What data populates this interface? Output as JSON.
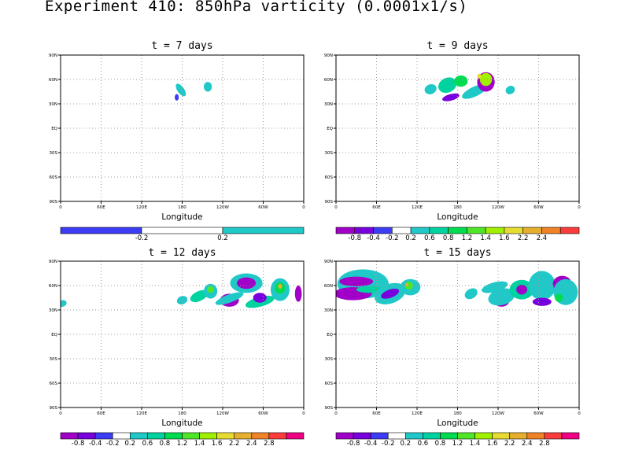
{
  "figure": {
    "title": "Experiment 410: 850hPa varticity (0.0001x1/s)"
  },
  "chart_data": [
    {
      "type": "contour-map",
      "title": "t = 7 days",
      "xlabel": "Longitude",
      "x_ticks": [
        "0",
        "60E",
        "120E",
        "180",
        "120W",
        "60W",
        "0"
      ],
      "y_ticks": [
        "90S",
        "60S",
        "30S",
        "EQ",
        "30N",
        "60N",
        "90N"
      ],
      "grid": true,
      "colorbar": {
        "colors": [
          "#3c3cf5",
          "#ffffff",
          "#20c8c8"
        ],
        "labels": [
          "-0.2",
          "0.2"
        ]
      },
      "features": [
        {
          "lon": 178,
          "lat": 47,
          "value": 0.6,
          "rx": 5,
          "ry": 9,
          "rot": -35
        },
        {
          "lon": 172,
          "lat": 38,
          "value": -0.4,
          "rx": 3,
          "ry": 4,
          "rot": 0
        },
        {
          "lon": 218,
          "lat": 51,
          "value": 0.6,
          "rx": 6,
          "ry": 6,
          "rot": 0
        }
      ]
    },
    {
      "type": "contour-map",
      "title": "t = 9 days",
      "xlabel": "Longitude",
      "x_ticks": [
        "0",
        "60E",
        "120E",
        "180",
        "120W",
        "60W",
        "0"
      ],
      "y_ticks": [
        "90S",
        "60S",
        "30S",
        "EQ",
        "30N",
        "60N",
        "90N"
      ],
      "grid": true,
      "colorbar": {
        "colors": [
          "#a000c8",
          "#7800dc",
          "#3c3cf5",
          "#ffffff",
          "#20c8c8",
          "#00d2a0",
          "#00dc50",
          "#50e628",
          "#a0f000",
          "#e6dc32",
          "#e6af2d",
          "#f08228",
          "#fa3c3c"
        ],
        "labels": [
          "-0.8",
          "-0.4",
          "-0.2",
          "0.2",
          "0.6",
          "0.8",
          "1.2",
          "1.4",
          "1.6",
          "2.2",
          "2.4"
        ]
      },
      "features": [
        {
          "lon": 140,
          "lat": 48,
          "value": 0.6,
          "rx": 9,
          "ry": 6,
          "rot": -20
        },
        {
          "lon": 165,
          "lat": 53,
          "value": 0.8,
          "rx": 14,
          "ry": 9,
          "rot": -25
        },
        {
          "lon": 185,
          "lat": 58,
          "value": 1.2,
          "rx": 10,
          "ry": 7,
          "rot": 0
        },
        {
          "lon": 170,
          "lat": 38,
          "value": -0.4,
          "rx": 13,
          "ry": 4,
          "rot": -15
        },
        {
          "lon": 205,
          "lat": 45,
          "value": 0.6,
          "rx": 20,
          "ry": 6,
          "rot": -25
        },
        {
          "lon": 222,
          "lat": 57,
          "value": -0.8,
          "rx": 13,
          "ry": 12,
          "rot": 0
        },
        {
          "lon": 222,
          "lat": 60,
          "value": 1.6,
          "rx": 9,
          "ry": 8,
          "rot": 0
        },
        {
          "lon": 212,
          "lat": 64,
          "value": 2.2,
          "rx": 3,
          "ry": 3,
          "rot": 0
        },
        {
          "lon": 258,
          "lat": 47,
          "value": 0.6,
          "rx": 7,
          "ry": 5,
          "rot": -30
        }
      ]
    },
    {
      "type": "contour-map",
      "title": "t = 12 days",
      "xlabel": "Longitude",
      "x_ticks": [
        "0",
        "60E",
        "120E",
        "180",
        "120W",
        "60W",
        "0"
      ],
      "y_ticks": [
        "90S",
        "60S",
        "30S",
        "EQ",
        "30N",
        "60N",
        "90N"
      ],
      "grid": true,
      "colorbar": {
        "colors": [
          "#a000c8",
          "#7800dc",
          "#3c3cf5",
          "#ffffff",
          "#20c8c8",
          "#00d2a0",
          "#00dc50",
          "#50e628",
          "#a0f000",
          "#e6dc32",
          "#e6af2d",
          "#f08228",
          "#fa3c3c",
          "#f00082"
        ],
        "labels": [
          "-0.8",
          "-0.4",
          "-0.2",
          "0.2",
          "0.6",
          "0.8",
          "1.2",
          "1.4",
          "1.6",
          "2.2",
          "2.4",
          "2.8"
        ]
      },
      "features": [
        {
          "lon": 3,
          "lat": 38,
          "value": 0.6,
          "rx": 6,
          "ry": 4,
          "rot": -20
        },
        {
          "lon": 180,
          "lat": 42,
          "value": 0.6,
          "rx": 8,
          "ry": 5,
          "rot": -20
        },
        {
          "lon": 205,
          "lat": 47,
          "value": 0.8,
          "rx": 14,
          "ry": 6,
          "rot": -25
        },
        {
          "lon": 222,
          "lat": 53,
          "value": 0.6,
          "rx": 10,
          "ry": 9,
          "rot": 0
        },
        {
          "lon": 222,
          "lat": 55,
          "value": 1.4,
          "rx": 5,
          "ry": 4,
          "rot": 0
        },
        {
          "lon": 250,
          "lat": 42,
          "value": -0.8,
          "rx": 14,
          "ry": 8,
          "rot": 0
        },
        {
          "lon": 250,
          "lat": 44,
          "value": 0.6,
          "rx": 22,
          "ry": 5,
          "rot": -20
        },
        {
          "lon": 275,
          "lat": 63,
          "value": 0.6,
          "rx": 24,
          "ry": 12,
          "rot": 0
        },
        {
          "lon": 275,
          "lat": 63,
          "value": -0.8,
          "rx": 14,
          "ry": 7,
          "rot": 0
        },
        {
          "lon": 295,
          "lat": 40,
          "value": 0.8,
          "rx": 22,
          "ry": 6,
          "rot": -15
        },
        {
          "lon": 295,
          "lat": 45,
          "value": -0.4,
          "rx": 10,
          "ry": 6,
          "rot": 0
        },
        {
          "lon": 325,
          "lat": 55,
          "value": 0.6,
          "rx": 14,
          "ry": 14,
          "rot": 0
        },
        {
          "lon": 325,
          "lat": 57,
          "value": 1.2,
          "rx": 8,
          "ry": 7,
          "rot": 0
        },
        {
          "lon": 325,
          "lat": 59,
          "value": 2.4,
          "rx": 3,
          "ry": 3,
          "rot": 0
        },
        {
          "lon": 352,
          "lat": 50,
          "value": -0.8,
          "rx": 5,
          "ry": 10,
          "rot": 0
        }
      ]
    },
    {
      "type": "contour-map",
      "title": "t = 15 days",
      "xlabel": "Longitude",
      "x_ticks": [
        "0",
        "60E",
        "120E",
        "180",
        "120W",
        "60W",
        "0"
      ],
      "y_ticks": [
        "90S",
        "60S",
        "30S",
        "EQ",
        "30N",
        "60N",
        "90N"
      ],
      "grid": true,
      "colorbar": {
        "colors": [
          "#a000c8",
          "#7800dc",
          "#3c3cf5",
          "#ffffff",
          "#20c8c8",
          "#00d2a0",
          "#00dc50",
          "#50e628",
          "#a0f000",
          "#e6dc32",
          "#e6af2d",
          "#f08228",
          "#fa3c3c",
          "#f00082"
        ],
        "labels": [
          "-0.8",
          "-0.4",
          "-0.2",
          "0.2",
          "0.6",
          "0.8",
          "1.2",
          "1.4",
          "1.6",
          "2.2",
          "2.4",
          "2.8"
        ]
      },
      "features": [
        {
          "lon": 40,
          "lat": 62,
          "value": 0.6,
          "rx": 38,
          "ry": 18,
          "rot": 0
        },
        {
          "lon": 30,
          "lat": 65,
          "value": -0.8,
          "rx": 25,
          "ry": 6,
          "rot": 0
        },
        {
          "lon": 25,
          "lat": 50,
          "value": -0.8,
          "rx": 28,
          "ry": 8,
          "rot": 0
        },
        {
          "lon": 50,
          "lat": 55,
          "value": 0.8,
          "rx": 20,
          "ry": 4,
          "rot": 0
        },
        {
          "lon": 80,
          "lat": 50,
          "value": 0.6,
          "rx": 24,
          "ry": 12,
          "rot": -20
        },
        {
          "lon": 80,
          "lat": 50,
          "value": -0.4,
          "rx": 14,
          "ry": 5,
          "rot": -20
        },
        {
          "lon": 110,
          "lat": 58,
          "value": 0.6,
          "rx": 15,
          "ry": 10,
          "rot": 0
        },
        {
          "lon": 108,
          "lat": 60,
          "value": 1.4,
          "rx": 6,
          "ry": 5,
          "rot": 0
        },
        {
          "lon": 105,
          "lat": 61,
          "value": 2.4,
          "rx": 2,
          "ry": 2,
          "rot": 0
        },
        {
          "lon": 200,
          "lat": 50,
          "value": 0.6,
          "rx": 10,
          "ry": 6,
          "rot": -30
        },
        {
          "lon": 235,
          "lat": 58,
          "value": 0.6,
          "rx": 20,
          "ry": 6,
          "rot": -15
        },
        {
          "lon": 245,
          "lat": 42,
          "value": -0.8,
          "rx": 12,
          "ry": 8,
          "rot": 0
        },
        {
          "lon": 245,
          "lat": 46,
          "value": 0.6,
          "rx": 20,
          "ry": 10,
          "rot": -15
        },
        {
          "lon": 275,
          "lat": 55,
          "value": 0.8,
          "rx": 18,
          "ry": 12,
          "rot": 0
        },
        {
          "lon": 275,
          "lat": 55,
          "value": -0.8,
          "rx": 8,
          "ry": 6,
          "rot": 0
        },
        {
          "lon": 305,
          "lat": 60,
          "value": 0.6,
          "rx": 20,
          "ry": 18,
          "rot": 0
        },
        {
          "lon": 305,
          "lat": 40,
          "value": -0.4,
          "rx": 14,
          "ry": 5,
          "rot": 0
        },
        {
          "lon": 335,
          "lat": 62,
          "value": -0.8,
          "rx": 14,
          "ry": 10,
          "rot": 0
        },
        {
          "lon": 340,
          "lat": 52,
          "value": 0.6,
          "rx": 18,
          "ry": 16,
          "rot": 0
        },
        {
          "lon": 330,
          "lat": 45,
          "value": 1.2,
          "rx": 6,
          "ry": 5,
          "rot": 0
        }
      ]
    }
  ]
}
